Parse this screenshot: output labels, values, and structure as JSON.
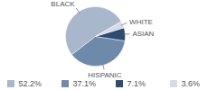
{
  "chart_data": {
    "type": "pie",
    "categories": [
      "BLACK",
      "HISPANIC",
      "ASIAN",
      "WHITE"
    ],
    "values": [
      52.2,
      37.1,
      7.1,
      3.6
    ],
    "value_labels": [
      "52.2%",
      "37.1%",
      "7.1%",
      "3.6%"
    ],
    "colors": [
      "#a8b7cb",
      "#6e8aab",
      "#2d4c72",
      "#d5dce7"
    ]
  }
}
